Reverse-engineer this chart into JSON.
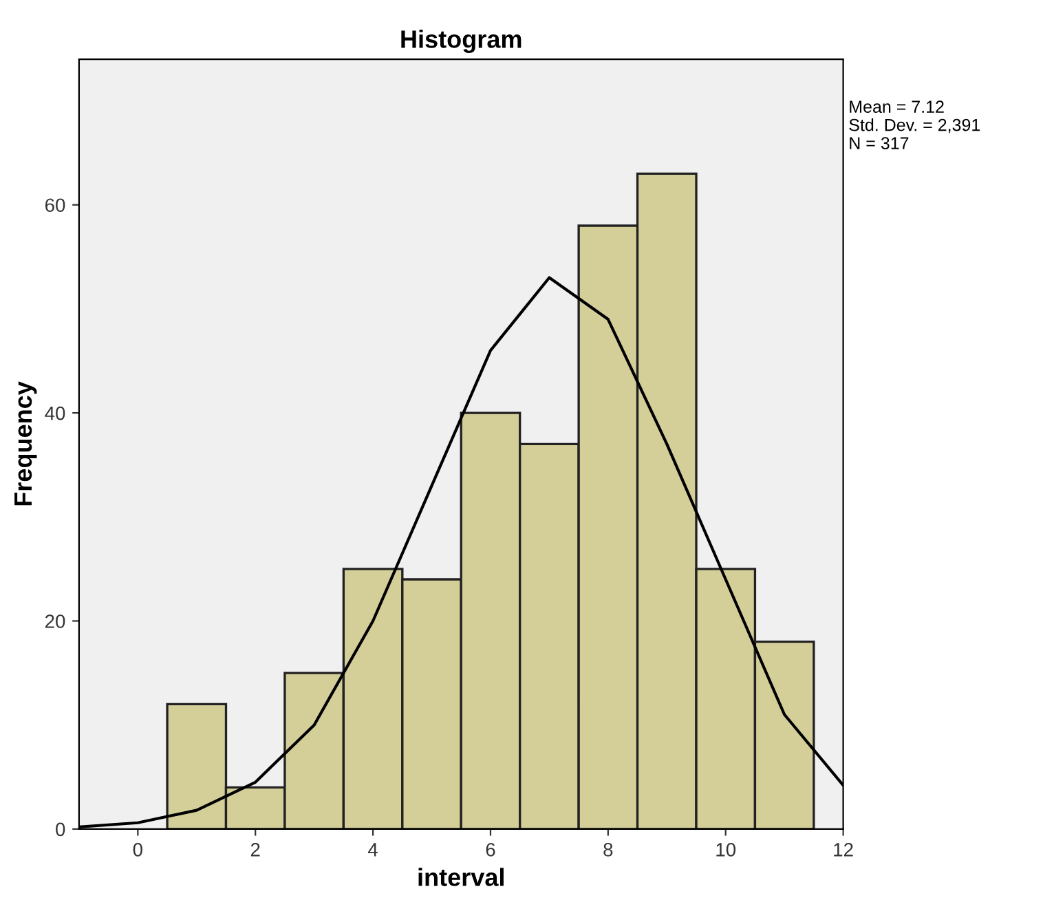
{
  "chart_data": {
    "type": "histogram",
    "title": "Histogram",
    "xlabel": "interval",
    "ylabel": "Frequency",
    "bins": [
      0.5,
      1.5,
      2.5,
      3.5,
      4.5,
      5.5,
      6.5,
      7.5,
      8.5,
      9.5,
      10.5,
      11.5
    ],
    "values": [
      12,
      4,
      15,
      25,
      24,
      40,
      37,
      58,
      63,
      25,
      18
    ],
    "color": "#d4cf99",
    "series": [
      {
        "type": "line",
        "color": "#000000",
        "x": [
          -1,
          0,
          1,
          2,
          3,
          4,
          5,
          6,
          7,
          8,
          9,
          10,
          11,
          12
        ],
        "values": [
          0.2,
          0.6,
          1.8,
          4.5,
          10,
          20,
          33,
          46,
          53,
          49,
          37,
          24,
          11,
          4.2
        ]
      }
    ],
    "xlim": [
      -1,
      12
    ],
    "ylim": [
      0,
      74
    ],
    "xticks": [
      0,
      2,
      4,
      6,
      8,
      10,
      12
    ],
    "yticks": [
      0,
      20,
      40,
      60
    ],
    "annotations": [
      "Mean = 7.12",
      "Std. Dev. = 2,391",
      "N = 317"
    ],
    "grid": false,
    "legend": false,
    "marker": "none"
  }
}
